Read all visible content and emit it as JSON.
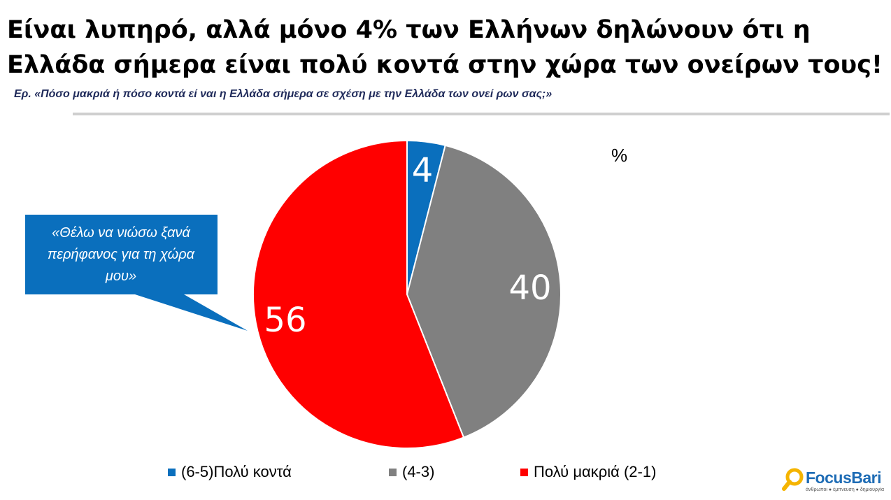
{
  "title": "Είναι λυπηρό, αλλά μόνο 4% των Ελλήνων δηλώνουν ότι η Ελλάδα σήμερα είναι πολύ κοντά στην χώρα των ονείρων τους!",
  "subtitle": "Ερ. «Πόσο μακριά ή πόσο κοντά εί ναι η Ελλάδα σήμερα σε σχέση με την Ελλάδα των ονεί ρων σας;»",
  "unit_label": "%",
  "callout": {
    "text": "«Θέλω να νιώσω ξανά περήφανος για τη χώρα μου»",
    "color": "#0a6fbd"
  },
  "chart_data": {
    "type": "pie",
    "title": "",
    "slices": [
      {
        "label": "(6-5)Πολύ κοντά",
        "value": 4,
        "display": "4",
        "color": "#0a6fbd"
      },
      {
        "label": "(4-3)",
        "value": 40,
        "display": "40",
        "color": "#808080"
      },
      {
        "label": "Πολύ μακριά (2-1)",
        "value": 56,
        "display": "56",
        "color": "#ff0000"
      }
    ],
    "legend_position": "bottom"
  },
  "logo": {
    "wordmark": "FocusBari",
    "tagline": "άνθρωποι ● έμπνευση ● δημιουργία",
    "color": "#1e6cb5",
    "accent": "#f5b400"
  }
}
